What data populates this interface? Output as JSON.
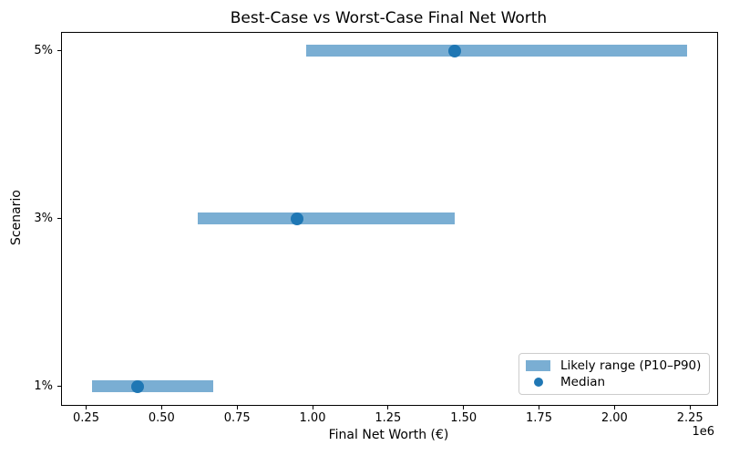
{
  "chart_data": {
    "type": "barh_range",
    "title": "Best-Case vs Worst-Case Final Net Worth",
    "xlabel": "Final Net Worth (€)",
    "ylabel": "Scenario",
    "x_offset_label": "1e6",
    "grid": false,
    "legend_position": "lower right",
    "categories_top_to_bottom": [
      "5%",
      "3%",
      "1%"
    ],
    "rows": [
      {
        "scenario": "5%",
        "p10": 980000,
        "median": 1470000,
        "p90": 2240000
      },
      {
        "scenario": "3%",
        "p10": 620000,
        "median": 950000,
        "p90": 1470000
      },
      {
        "scenario": "1%",
        "p10": 270000,
        "median": 420000,
        "p90": 670000
      }
    ],
    "xticks": [
      250000,
      500000,
      750000,
      1000000,
      1250000,
      1500000,
      1750000,
      2000000,
      2250000
    ],
    "xtick_labels": [
      "0.25",
      "0.50",
      "0.75",
      "1.00",
      "1.25",
      "1.50",
      "1.75",
      "2.00",
      "2.25"
    ],
    "xlim": [
      170000,
      2340000
    ],
    "legend": [
      {
        "label": "Likely range (P10–P90)",
        "marker": "patch"
      },
      {
        "label": "Median",
        "marker": "dot"
      }
    ],
    "colors": {
      "bar": "#7aaed3",
      "median_dot": "#1f77b4",
      "spine": "#000000",
      "legend_border": "#cccccc"
    }
  }
}
